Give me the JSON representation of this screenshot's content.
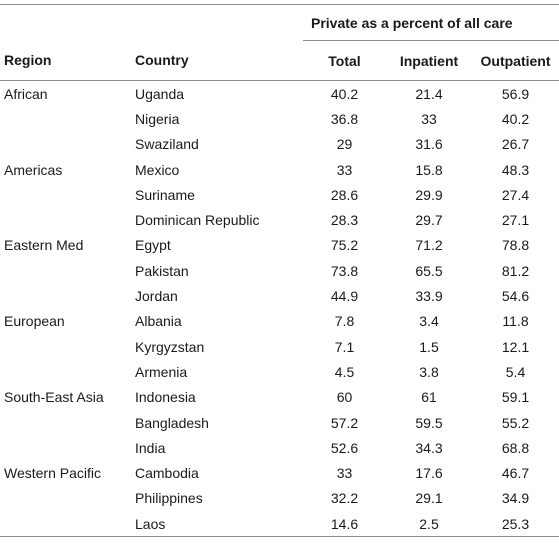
{
  "table": {
    "group_header": "Private as a percent of all care",
    "columns": {
      "region": "Region",
      "country": "Country",
      "total": "Total",
      "inpatient": "Inpatient",
      "outpatient": "Outpatient"
    },
    "rows": [
      {
        "region": "African",
        "country": "Uganda",
        "total": "40.2",
        "inpatient": "21.4",
        "outpatient": "56.9"
      },
      {
        "region": "",
        "country": "Nigeria",
        "total": "36.8",
        "inpatient": "33",
        "outpatient": "40.2"
      },
      {
        "region": "",
        "country": "Swaziland",
        "total": "29",
        "inpatient": "31.6",
        "outpatient": "26.7"
      },
      {
        "region": "Americas",
        "country": "Mexico",
        "total": "33",
        "inpatient": "15.8",
        "outpatient": "48.3"
      },
      {
        "region": "",
        "country": "Suriname",
        "total": "28.6",
        "inpatient": "29.9",
        "outpatient": "27.4"
      },
      {
        "region": "",
        "country": "Dominican Republic",
        "total": "28.3",
        "inpatient": "29.7",
        "outpatient": "27.1"
      },
      {
        "region": "Eastern Med",
        "country": "Egypt",
        "total": "75.2",
        "inpatient": "71.2",
        "outpatient": "78.8"
      },
      {
        "region": "",
        "country": "Pakistan",
        "total": "73.8",
        "inpatient": "65.5",
        "outpatient": "81.2"
      },
      {
        "region": "",
        "country": "Jordan",
        "total": "44.9",
        "inpatient": "33.9",
        "outpatient": "54.6"
      },
      {
        "region": "European",
        "country": "Albania",
        "total": "7.8",
        "inpatient": "3.4",
        "outpatient": "11.8"
      },
      {
        "region": "",
        "country": "Kyrgyzstan",
        "total": "7.1",
        "inpatient": "1.5",
        "outpatient": "12.1"
      },
      {
        "region": "",
        "country": "Armenia",
        "total": "4.5",
        "inpatient": "3.8",
        "outpatient": "5.4"
      },
      {
        "region": "South-East Asia",
        "country": "Indonesia",
        "total": "60",
        "inpatient": "61",
        "outpatient": "59.1"
      },
      {
        "region": "",
        "country": "Bangladesh",
        "total": "57.2",
        "inpatient": "59.5",
        "outpatient": "55.2"
      },
      {
        "region": "",
        "country": "India",
        "total": "52.6",
        "inpatient": "34.3",
        "outpatient": "68.8"
      },
      {
        "region": "Western Pacific",
        "country": "Cambodia",
        "total": "33",
        "inpatient": "17.6",
        "outpatient": "46.7"
      },
      {
        "region": "",
        "country": "Philippines",
        "total": "32.2",
        "inpatient": "29.1",
        "outpatient": "34.9"
      },
      {
        "region": "",
        "country": "Laos",
        "total": "14.6",
        "inpatient": "2.5",
        "outpatient": "25.3"
      }
    ]
  }
}
